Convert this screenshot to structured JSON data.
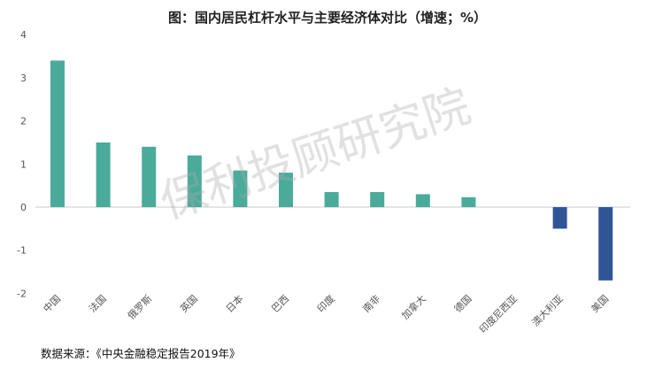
{
  "chart_data": {
    "type": "bar",
    "title": "图：国内居民杠杆水平与主要经济体对比（增速；%）",
    "xlabel": "",
    "ylabel": "",
    "ylim": [
      -2,
      4
    ],
    "yticks": [
      -2,
      -1,
      0,
      1,
      2,
      3,
      4
    ],
    "grid": false,
    "categories": [
      "中国",
      "法国",
      "俄罗斯",
      "英国",
      "日本",
      "巴西",
      "印度",
      "南非",
      "加拿大",
      "德国",
      "印度尼西亚",
      "澳大利亚",
      "美国"
    ],
    "values": [
      3.4,
      1.5,
      1.4,
      1.2,
      0.85,
      0.8,
      0.35,
      0.35,
      0.3,
      0.23,
      0,
      -0.5,
      -1.7
    ],
    "colors": {
      "positive": "#4aab9b",
      "negative": "#2f5597",
      "axis": "#c8c8c8"
    }
  },
  "source": "数据来源：《中央金融稳定报告2019年》",
  "watermark": "保利投顾研究院"
}
